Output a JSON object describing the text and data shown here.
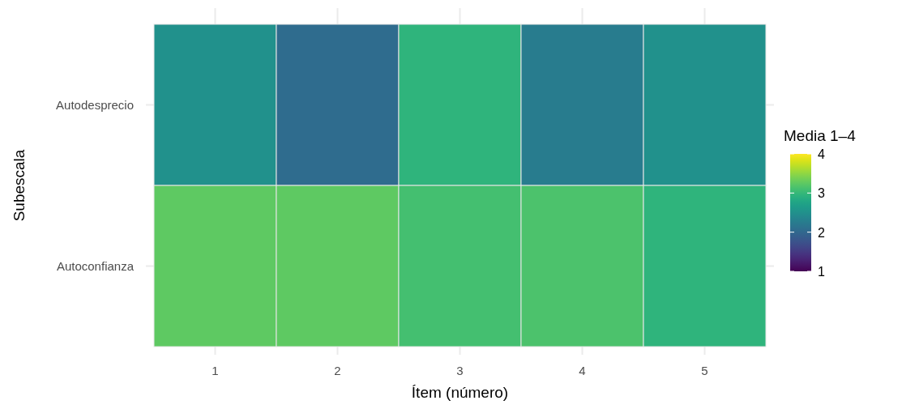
{
  "chart_data": {
    "type": "heatmap",
    "xlabel": "Ítem (número)",
    "ylabel": "Subescala",
    "legend_title": "Media 1–4",
    "categories": [
      "1",
      "2",
      "3",
      "4",
      "5"
    ],
    "y_categories": [
      "Autodesprecio",
      "Autoconfianza"
    ],
    "cells": [
      [
        2.5,
        2.05,
        2.95,
        2.25,
        2.5
      ],
      [
        3.25,
        3.25,
        3.1,
        3.15,
        2.95
      ]
    ],
    "clim": [
      1,
      4
    ],
    "cticks": [
      1,
      2,
      3,
      4
    ],
    "grid": true
  }
}
